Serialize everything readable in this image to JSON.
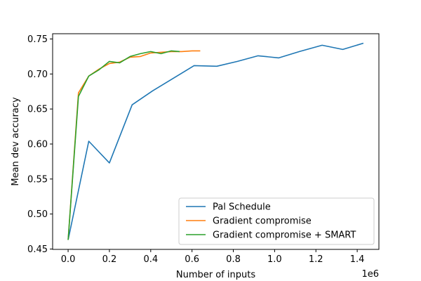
{
  "chart_data": {
    "type": "line",
    "xlabel": "Number of inputs",
    "ylabel": "Mean dev accuracy",
    "x_offset_label": "1e6",
    "xlim": [
      -0.075,
      1.505
    ],
    "ylim": [
      0.4495,
      0.7575
    ],
    "x_ticks": [
      0.0,
      0.2,
      0.4,
      0.6,
      0.8,
      1.0,
      1.2,
      1.4
    ],
    "x_tick_labels": [
      "0.0",
      "0.2",
      "0.4",
      "0.6",
      "0.8",
      "1.0",
      "1.2",
      "1.4"
    ],
    "y_ticks": [
      0.45,
      0.5,
      0.55,
      0.6,
      0.65,
      0.7,
      0.75
    ],
    "y_tick_labels": [
      "0.45",
      "0.50",
      "0.55",
      "0.60",
      "0.65",
      "0.70",
      "0.75"
    ],
    "grid": false,
    "legend_position": "lower-right",
    "series": [
      {
        "name": "Pal Schedule",
        "color": "#1f77b4",
        "x": [
          0.0,
          0.1,
          0.2,
          0.31,
          0.41,
          0.51,
          0.61,
          0.72,
          0.82,
          0.92,
          1.02,
          1.12,
          1.23,
          1.33,
          1.43
        ],
        "y": [
          0.463,
          0.604,
          0.573,
          0.656,
          0.676,
          0.694,
          0.712,
          0.711,
          0.718,
          0.726,
          0.723,
          0.732,
          0.741,
          0.735,
          0.744
        ]
      },
      {
        "name": "Gradient compromise",
        "color": "#ff7f0e",
        "x": [
          0.0,
          0.05,
          0.1,
          0.15,
          0.2,
          0.25,
          0.3,
          0.35,
          0.4,
          0.45,
          0.5,
          0.55,
          0.6,
          0.64
        ],
        "y": [
          0.463,
          0.673,
          0.697,
          0.707,
          0.715,
          0.717,
          0.724,
          0.725,
          0.73,
          0.731,
          0.732,
          0.732,
          0.733,
          0.733
        ]
      },
      {
        "name": "Gradient compromise + SMART",
        "color": "#2ca02c",
        "x": [
          0.0,
          0.05,
          0.1,
          0.15,
          0.2,
          0.25,
          0.3,
          0.35,
          0.4,
          0.45,
          0.5,
          0.54
        ],
        "y": [
          0.463,
          0.668,
          0.697,
          0.706,
          0.718,
          0.716,
          0.725,
          0.729,
          0.732,
          0.729,
          0.733,
          0.732
        ]
      }
    ]
  }
}
